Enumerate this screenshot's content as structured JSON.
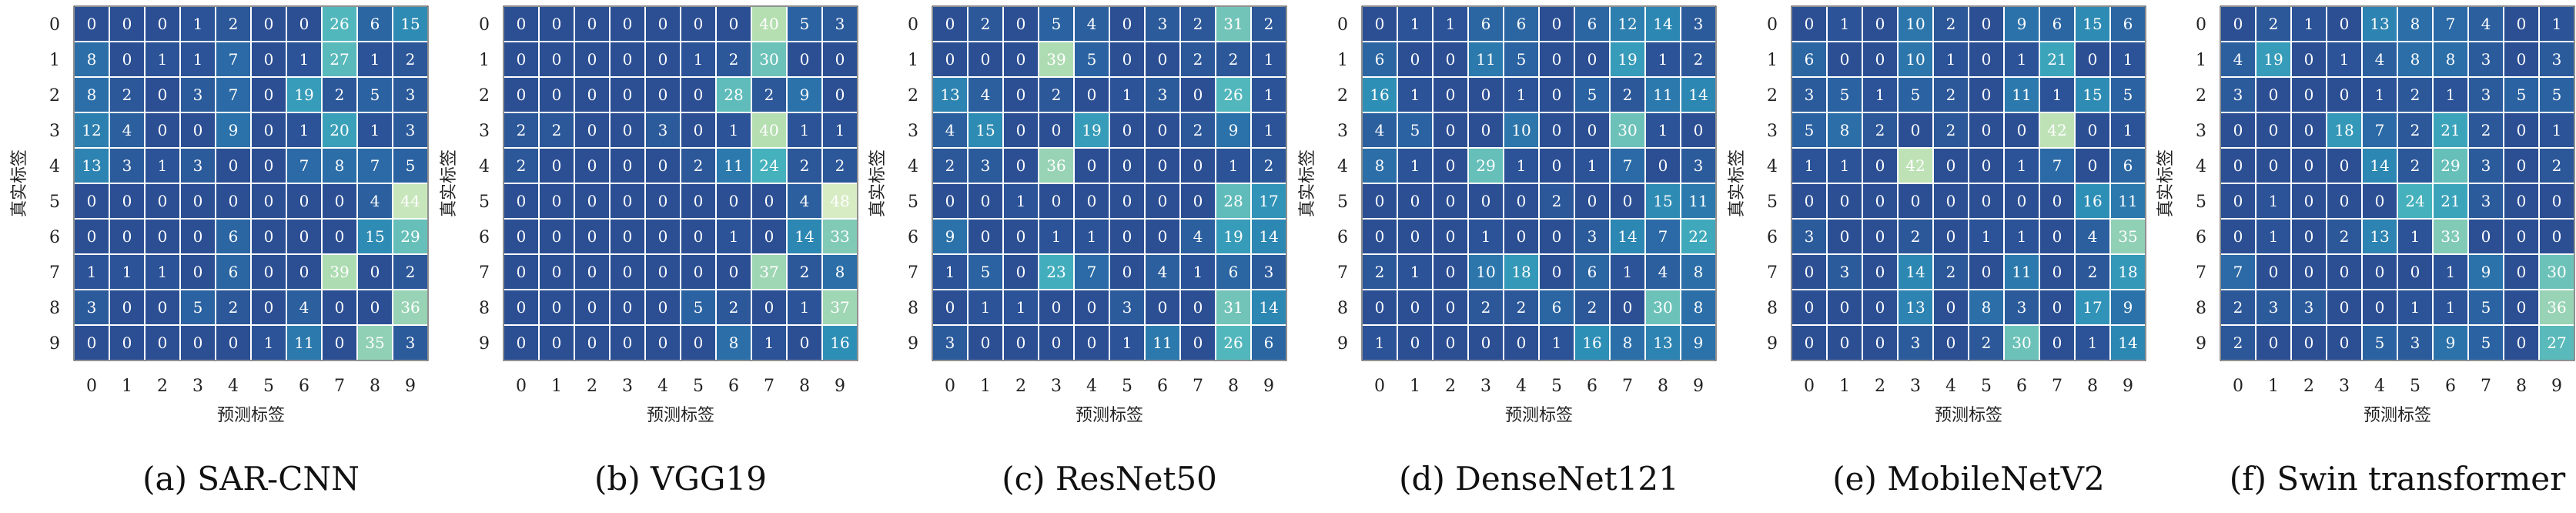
{
  "axis_labels": {
    "x": "预测标签",
    "y": "真实标签"
  },
  "tick_labels": [
    "0",
    "1",
    "2",
    "3",
    "4",
    "5",
    "6",
    "7",
    "8",
    "9"
  ],
  "chart_data": [
    {
      "type": "heatmap",
      "caption": "(a) SAR-CNN",
      "xlabel": "预测标签",
      "ylabel": "真实标签",
      "x": [
        "0",
        "1",
        "2",
        "3",
        "4",
        "5",
        "6",
        "7",
        "8",
        "9"
      ],
      "y": [
        "0",
        "1",
        "2",
        "3",
        "4",
        "5",
        "6",
        "7",
        "8",
        "9"
      ],
      "matrix": [
        [
          0,
          0,
          0,
          1,
          2,
          0,
          0,
          26,
          6,
          15
        ],
        [
          8,
          0,
          1,
          1,
          7,
          0,
          1,
          27,
          1,
          2
        ],
        [
          8,
          2,
          0,
          3,
          7,
          0,
          19,
          2,
          5,
          3
        ],
        [
          12,
          4,
          0,
          0,
          9,
          0,
          1,
          20,
          1,
          3
        ],
        [
          13,
          3,
          1,
          3,
          0,
          0,
          7,
          8,
          7,
          5
        ],
        [
          0,
          0,
          0,
          0,
          0,
          0,
          0,
          0,
          4,
          44
        ],
        [
          0,
          0,
          0,
          0,
          6,
          0,
          0,
          0,
          15,
          29
        ],
        [
          1,
          1,
          1,
          0,
          6,
          0,
          0,
          39,
          0,
          2
        ],
        [
          3,
          0,
          0,
          5,
          2,
          0,
          4,
          0,
          0,
          36
        ],
        [
          0,
          0,
          0,
          0,
          0,
          1,
          11,
          0,
          35,
          3
        ]
      ]
    },
    {
      "type": "heatmap",
      "caption": "(b) VGG19",
      "xlabel": "预测标签",
      "ylabel": "真实标签",
      "x": [
        "0",
        "1",
        "2",
        "3",
        "4",
        "5",
        "6",
        "7",
        "8",
        "9"
      ],
      "y": [
        "0",
        "1",
        "2",
        "3",
        "4",
        "5",
        "6",
        "7",
        "8",
        "9"
      ],
      "matrix": [
        [
          0,
          0,
          0,
          0,
          0,
          0,
          0,
          40,
          5,
          3
        ],
        [
          0,
          0,
          0,
          0,
          0,
          1,
          2,
          30,
          0,
          0
        ],
        [
          0,
          0,
          0,
          0,
          0,
          0,
          28,
          2,
          9,
          0
        ],
        [
          2,
          2,
          0,
          0,
          3,
          0,
          1,
          40,
          1,
          1
        ],
        [
          2,
          0,
          0,
          0,
          0,
          2,
          11,
          24,
          2,
          2
        ],
        [
          0,
          0,
          0,
          0,
          0,
          0,
          0,
          0,
          4,
          48
        ],
        [
          0,
          0,
          0,
          0,
          0,
          0,
          1,
          0,
          14,
          33
        ],
        [
          0,
          0,
          0,
          0,
          0,
          0,
          0,
          37,
          2,
          8
        ],
        [
          0,
          0,
          0,
          0,
          0,
          5,
          2,
          0,
          1,
          37
        ],
        [
          0,
          0,
          0,
          0,
          0,
          0,
          8,
          1,
          0,
          16
        ]
      ]
    },
    {
      "type": "heatmap",
      "caption": "(c) ResNet50",
      "xlabel": "预测标签",
      "ylabel": "真实标签",
      "x": [
        "0",
        "1",
        "2",
        "3",
        "4",
        "5",
        "6",
        "7",
        "8",
        "9"
      ],
      "y": [
        "0",
        "1",
        "2",
        "3",
        "4",
        "5",
        "6",
        "7",
        "8",
        "9"
      ],
      "matrix": [
        [
          0,
          2,
          0,
          5,
          4,
          0,
          3,
          2,
          31,
          2
        ],
        [
          0,
          0,
          0,
          39,
          5,
          0,
          0,
          2,
          2,
          1
        ],
        [
          13,
          4,
          0,
          2,
          0,
          1,
          3,
          0,
          26,
          1
        ],
        [
          4,
          15,
          0,
          0,
          19,
          0,
          0,
          2,
          9,
          1
        ],
        [
          2,
          3,
          0,
          36,
          0,
          0,
          0,
          0,
          1,
          2
        ],
        [
          0,
          0,
          1,
          0,
          0,
          0,
          0,
          0,
          28,
          17
        ],
        [
          9,
          0,
          0,
          1,
          1,
          0,
          0,
          4,
          19,
          14
        ],
        [
          1,
          5,
          0,
          23,
          7,
          0,
          4,
          1,
          6,
          3
        ],
        [
          0,
          1,
          1,
          0,
          0,
          3,
          0,
          0,
          31,
          14
        ],
        [
          3,
          0,
          0,
          0,
          0,
          1,
          11,
          0,
          26,
          6
        ]
      ]
    },
    {
      "type": "heatmap",
      "caption": "(d) DenseNet121",
      "xlabel": "预测标签",
      "ylabel": "真实标签",
      "x": [
        "0",
        "1",
        "2",
        "3",
        "4",
        "5",
        "6",
        "7",
        "8",
        "9"
      ],
      "y": [
        "0",
        "1",
        "2",
        "3",
        "4",
        "5",
        "6",
        "7",
        "8",
        "9"
      ],
      "matrix": [
        [
          0,
          1,
          1,
          6,
          6,
          0,
          6,
          12,
          14,
          3
        ],
        [
          6,
          0,
          0,
          11,
          5,
          0,
          0,
          19,
          1,
          2
        ],
        [
          16,
          1,
          0,
          0,
          1,
          0,
          5,
          2,
          11,
          14
        ],
        [
          4,
          5,
          0,
          0,
          10,
          0,
          0,
          30,
          1,
          0
        ],
        [
          8,
          1,
          0,
          29,
          1,
          0,
          1,
          7,
          0,
          3
        ],
        [
          0,
          0,
          0,
          0,
          0,
          2,
          0,
          0,
          15,
          11
        ],
        [
          0,
          0,
          0,
          1,
          0,
          0,
          3,
          14,
          7,
          22
        ],
        [
          2,
          1,
          0,
          10,
          18,
          0,
          6,
          1,
          4,
          8
        ],
        [
          0,
          0,
          0,
          2,
          2,
          6,
          2,
          0,
          30,
          8
        ],
        [
          1,
          0,
          0,
          0,
          0,
          1,
          16,
          8,
          13,
          9
        ]
      ]
    },
    {
      "type": "heatmap",
      "caption": "(e) MobileNetV2",
      "xlabel": "预测标签",
      "ylabel": "真实标签",
      "x": [
        "0",
        "1",
        "2",
        "3",
        "4",
        "5",
        "6",
        "7",
        "8",
        "9"
      ],
      "y": [
        "0",
        "1",
        "2",
        "3",
        "4",
        "5",
        "6",
        "7",
        "8",
        "9"
      ],
      "matrix": [
        [
          0,
          1,
          0,
          10,
          2,
          0,
          9,
          6,
          15,
          6
        ],
        [
          6,
          0,
          0,
          10,
          1,
          0,
          1,
          21,
          0,
          1
        ],
        [
          3,
          5,
          1,
          5,
          2,
          0,
          11,
          1,
          15,
          5
        ],
        [
          5,
          8,
          2,
          0,
          2,
          0,
          0,
          42,
          0,
          1
        ],
        [
          1,
          1,
          0,
          42,
          0,
          0,
          1,
          7,
          0,
          6
        ],
        [
          0,
          0,
          0,
          0,
          0,
          0,
          0,
          0,
          16,
          11
        ],
        [
          3,
          0,
          0,
          2,
          0,
          1,
          1,
          0,
          4,
          35
        ],
        [
          0,
          3,
          0,
          14,
          2,
          0,
          11,
          0,
          2,
          18
        ],
        [
          0,
          0,
          0,
          13,
          0,
          8,
          3,
          0,
          17,
          9
        ],
        [
          0,
          0,
          0,
          3,
          0,
          2,
          30,
          0,
          1,
          14
        ]
      ]
    },
    {
      "type": "heatmap",
      "caption": "(f) Swin transformer",
      "xlabel": "预测标签",
      "ylabel": "真实标签",
      "x": [
        "0",
        "1",
        "2",
        "3",
        "4",
        "5",
        "6",
        "7",
        "8",
        "9"
      ],
      "y": [
        "0",
        "1",
        "2",
        "3",
        "4",
        "5",
        "6",
        "7",
        "8",
        "9"
      ],
      "matrix": [
        [
          0,
          2,
          1,
          0,
          13,
          8,
          7,
          4,
          0,
          1
        ],
        [
          4,
          19,
          0,
          1,
          4,
          8,
          8,
          3,
          0,
          3
        ],
        [
          3,
          0,
          0,
          0,
          1,
          2,
          1,
          3,
          5,
          5
        ],
        [
          0,
          0,
          0,
          18,
          7,
          2,
          21,
          2,
          0,
          1
        ],
        [
          0,
          0,
          0,
          0,
          14,
          2,
          29,
          3,
          0,
          2
        ],
        [
          0,
          1,
          0,
          0,
          0,
          24,
          21,
          3,
          0,
          0
        ],
        [
          0,
          1,
          0,
          2,
          13,
          1,
          33,
          0,
          0,
          0
        ],
        [
          7,
          0,
          0,
          0,
          0,
          0,
          1,
          9,
          0,
          30
        ],
        [
          2,
          3,
          3,
          0,
          0,
          1,
          1,
          5,
          0,
          36
        ],
        [
          2,
          0,
          0,
          0,
          5,
          3,
          9,
          5,
          0,
          27
        ]
      ]
    }
  ],
  "colormap": {
    "name": "YlGnBu",
    "vmin": 0,
    "vmax": 48,
    "stops": [
      "#2c4f94",
      "#2b6ea8",
      "#2e8fb6",
      "#45b1bd",
      "#79c7b7",
      "#b5dfb1",
      "#d8ecc4"
    ],
    "empty_color": "#ffffff",
    "grid_color": "#ffffff",
    "text_color": "#ffffff"
  }
}
